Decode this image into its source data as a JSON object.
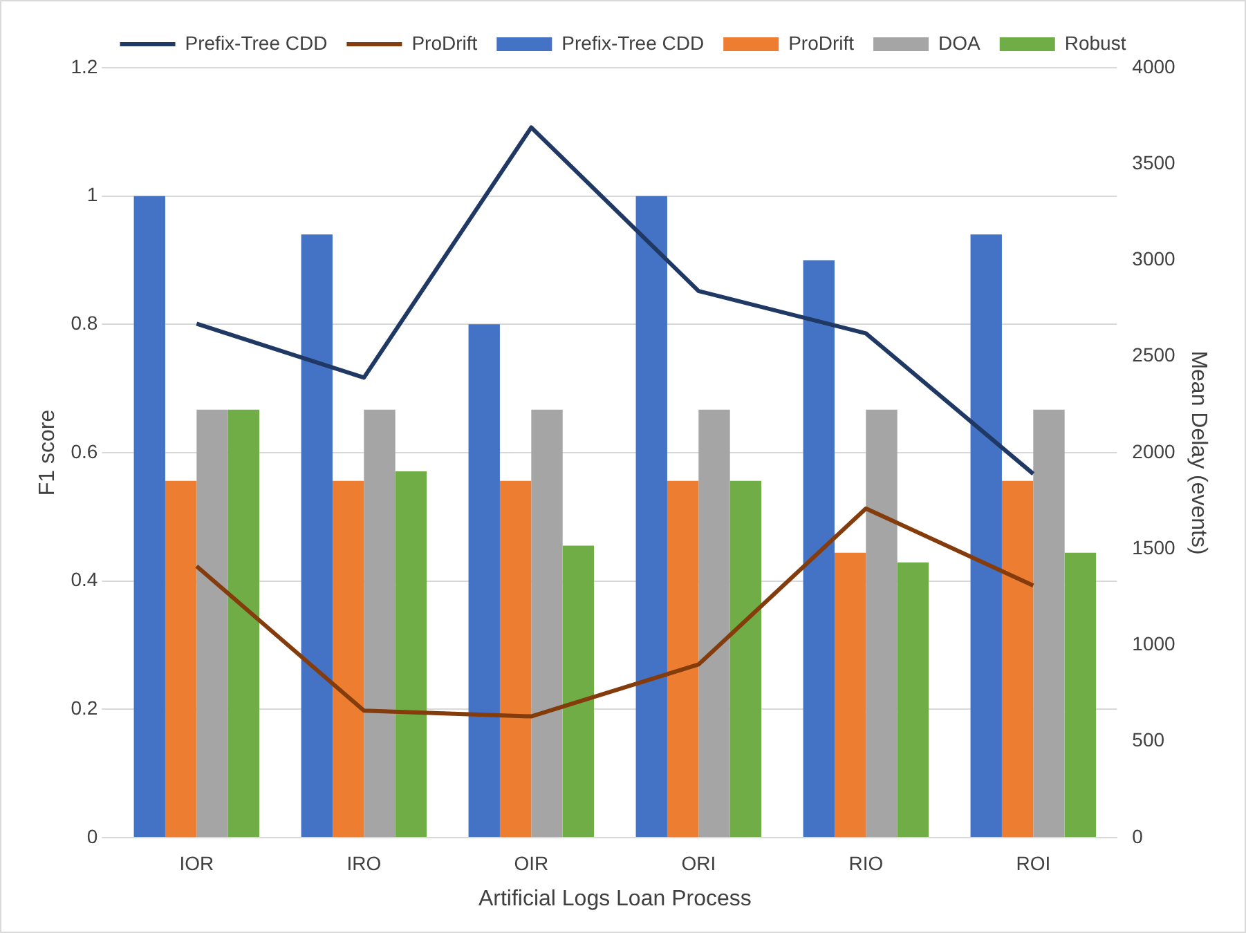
{
  "chart_data": {
    "type": "bar",
    "xlabel": "Artificial Logs Loan Process",
    "ylabel": "F1 score",
    "y2label": "Mean Delay (events)",
    "categories": [
      "IOR",
      "IRO",
      "OIR",
      "ORI",
      "RIO",
      "ROI"
    ],
    "series": [
      {
        "name": "Prefix-Tree CDD",
        "color": "#4472c4",
        "values": [
          1,
          0.94,
          0.8,
          1,
          0.9,
          0.94
        ]
      },
      {
        "name": "ProDrift",
        "color": "#ed7d31",
        "values": [
          0.556,
          0.556,
          0.556,
          0.556,
          0.444,
          0.556
        ]
      },
      {
        "name": "DOA",
        "color": "#a5a5a5",
        "values": [
          0.667,
          0.667,
          0.667,
          0.667,
          0.667,
          0.667
        ]
      },
      {
        "name": "Robust",
        "color": "#70ad47",
        "values": [
          0.667,
          0.571,
          0.455,
          0.556,
          0.429,
          0.444
        ]
      },
      {
        "name": "Prefix-Tree CDD",
        "type": "line",
        "axis": "y2",
        "color": "#203864",
        "values": [
          2670,
          2390,
          3690,
          2840,
          2620,
          1890
        ]
      },
      {
        "name": "ProDrift",
        "type": "line",
        "axis": "y2",
        "color": "#843c0c",
        "values": [
          1410,
          660,
          630,
          900,
          1710,
          1310
        ]
      }
    ],
    "ylim": [
      0,
      1.2
    ],
    "yticks": [
      0,
      0.2,
      0.4,
      0.6,
      0.8,
      1,
      1.2
    ],
    "y2lim": [
      0,
      4000
    ],
    "y2ticks": [
      0,
      500,
      1000,
      1500,
      2000,
      2500,
      3000,
      3500,
      4000
    ],
    "grid": "y",
    "legend": "top",
    "marker": "none",
    "line_style": "solid"
  }
}
